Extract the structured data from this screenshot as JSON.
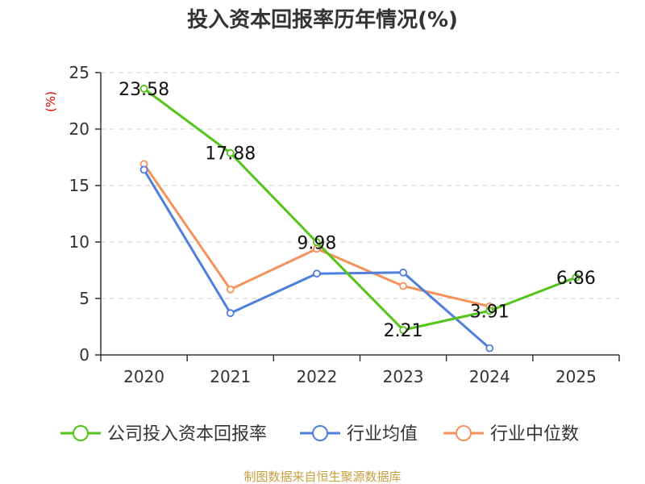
{
  "chart_data": {
    "type": "line",
    "title": "投入资本回报率历年情况(%)",
    "ylabel": "(%)",
    "ylabel_color": "#e00000",
    "categories": [
      "2020",
      "2021",
      "2022",
      "2023",
      "2024",
      "2025"
    ],
    "ylim": [
      0,
      25
    ],
    "yticks": [
      0,
      5,
      10,
      15,
      20,
      25
    ],
    "grid": true,
    "legend_position": "bottom",
    "series": [
      {
        "name": "公司投入资本回报率",
        "color": "#52c41a",
        "values": [
          23.58,
          17.88,
          9.98,
          2.21,
          3.91,
          6.86
        ],
        "labels": [
          "23.58",
          "17.88",
          "9.98",
          "2.21",
          "3.91",
          "6.86"
        ]
      },
      {
        "name": "行业均值",
        "color": "#4e7fdc",
        "values": [
          16.4,
          3.7,
          7.2,
          7.3,
          0.6,
          null
        ]
      },
      {
        "name": "行业中位数",
        "color": "#f5915a",
        "values": [
          16.9,
          5.8,
          9.4,
          6.1,
          4.3,
          null
        ]
      }
    ],
    "source": "制图数据来自恒生聚源数据库",
    "source_color": "#c8a040"
  }
}
